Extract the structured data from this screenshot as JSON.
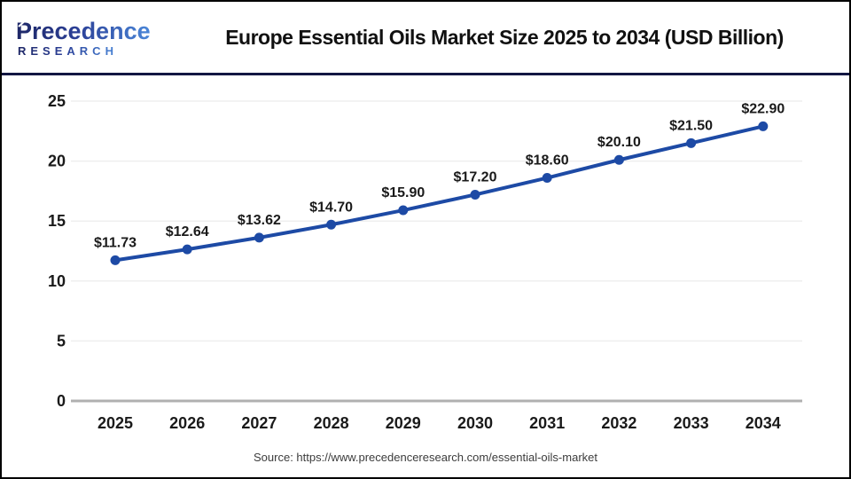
{
  "header": {
    "logo": {
      "name": "Precedence",
      "sub": "RESEARCH"
    },
    "title": "Europe Essential Oils Market Size 2025 to 2034 (USD Billion)"
  },
  "chart_data": {
    "type": "line",
    "title": "Europe Essential Oils Market Size 2025 to 2034 (USD Billion)",
    "unit": "USD Billion",
    "categories": [
      "2025",
      "2026",
      "2027",
      "2028",
      "2029",
      "2030",
      "2031",
      "2032",
      "2033",
      "2034"
    ],
    "values": [
      11.73,
      12.64,
      13.62,
      14.7,
      15.9,
      17.2,
      18.6,
      20.1,
      21.5,
      22.9
    ],
    "point_labels": [
      "$11.73",
      "$12.64",
      "$13.62",
      "$14.70",
      "$15.90",
      "$17.20",
      "$18.60",
      "$20.10",
      "$21.50",
      "$22.90"
    ],
    "xlabel": "",
    "ylabel": "",
    "ylim": [
      0,
      25
    ],
    "yticks": [
      0,
      5,
      10,
      15,
      20,
      25
    ],
    "grid": true,
    "legend": false,
    "line_color": "#1d4aa5",
    "marker_color": "#1d4aa5",
    "grid_color": "#efefef",
    "axis_color": "#b0b0b0"
  },
  "footer": {
    "source": "Source: https://www.precedenceresearch.com/essential-oils-market"
  },
  "colors": {
    "brand_navy": "#1e2766",
    "brand_mid": "#2b3f96",
    "brand_blue": "#4a86d8",
    "divider": "#131642",
    "frame_border": "#000000",
    "title_text": "#111111"
  }
}
